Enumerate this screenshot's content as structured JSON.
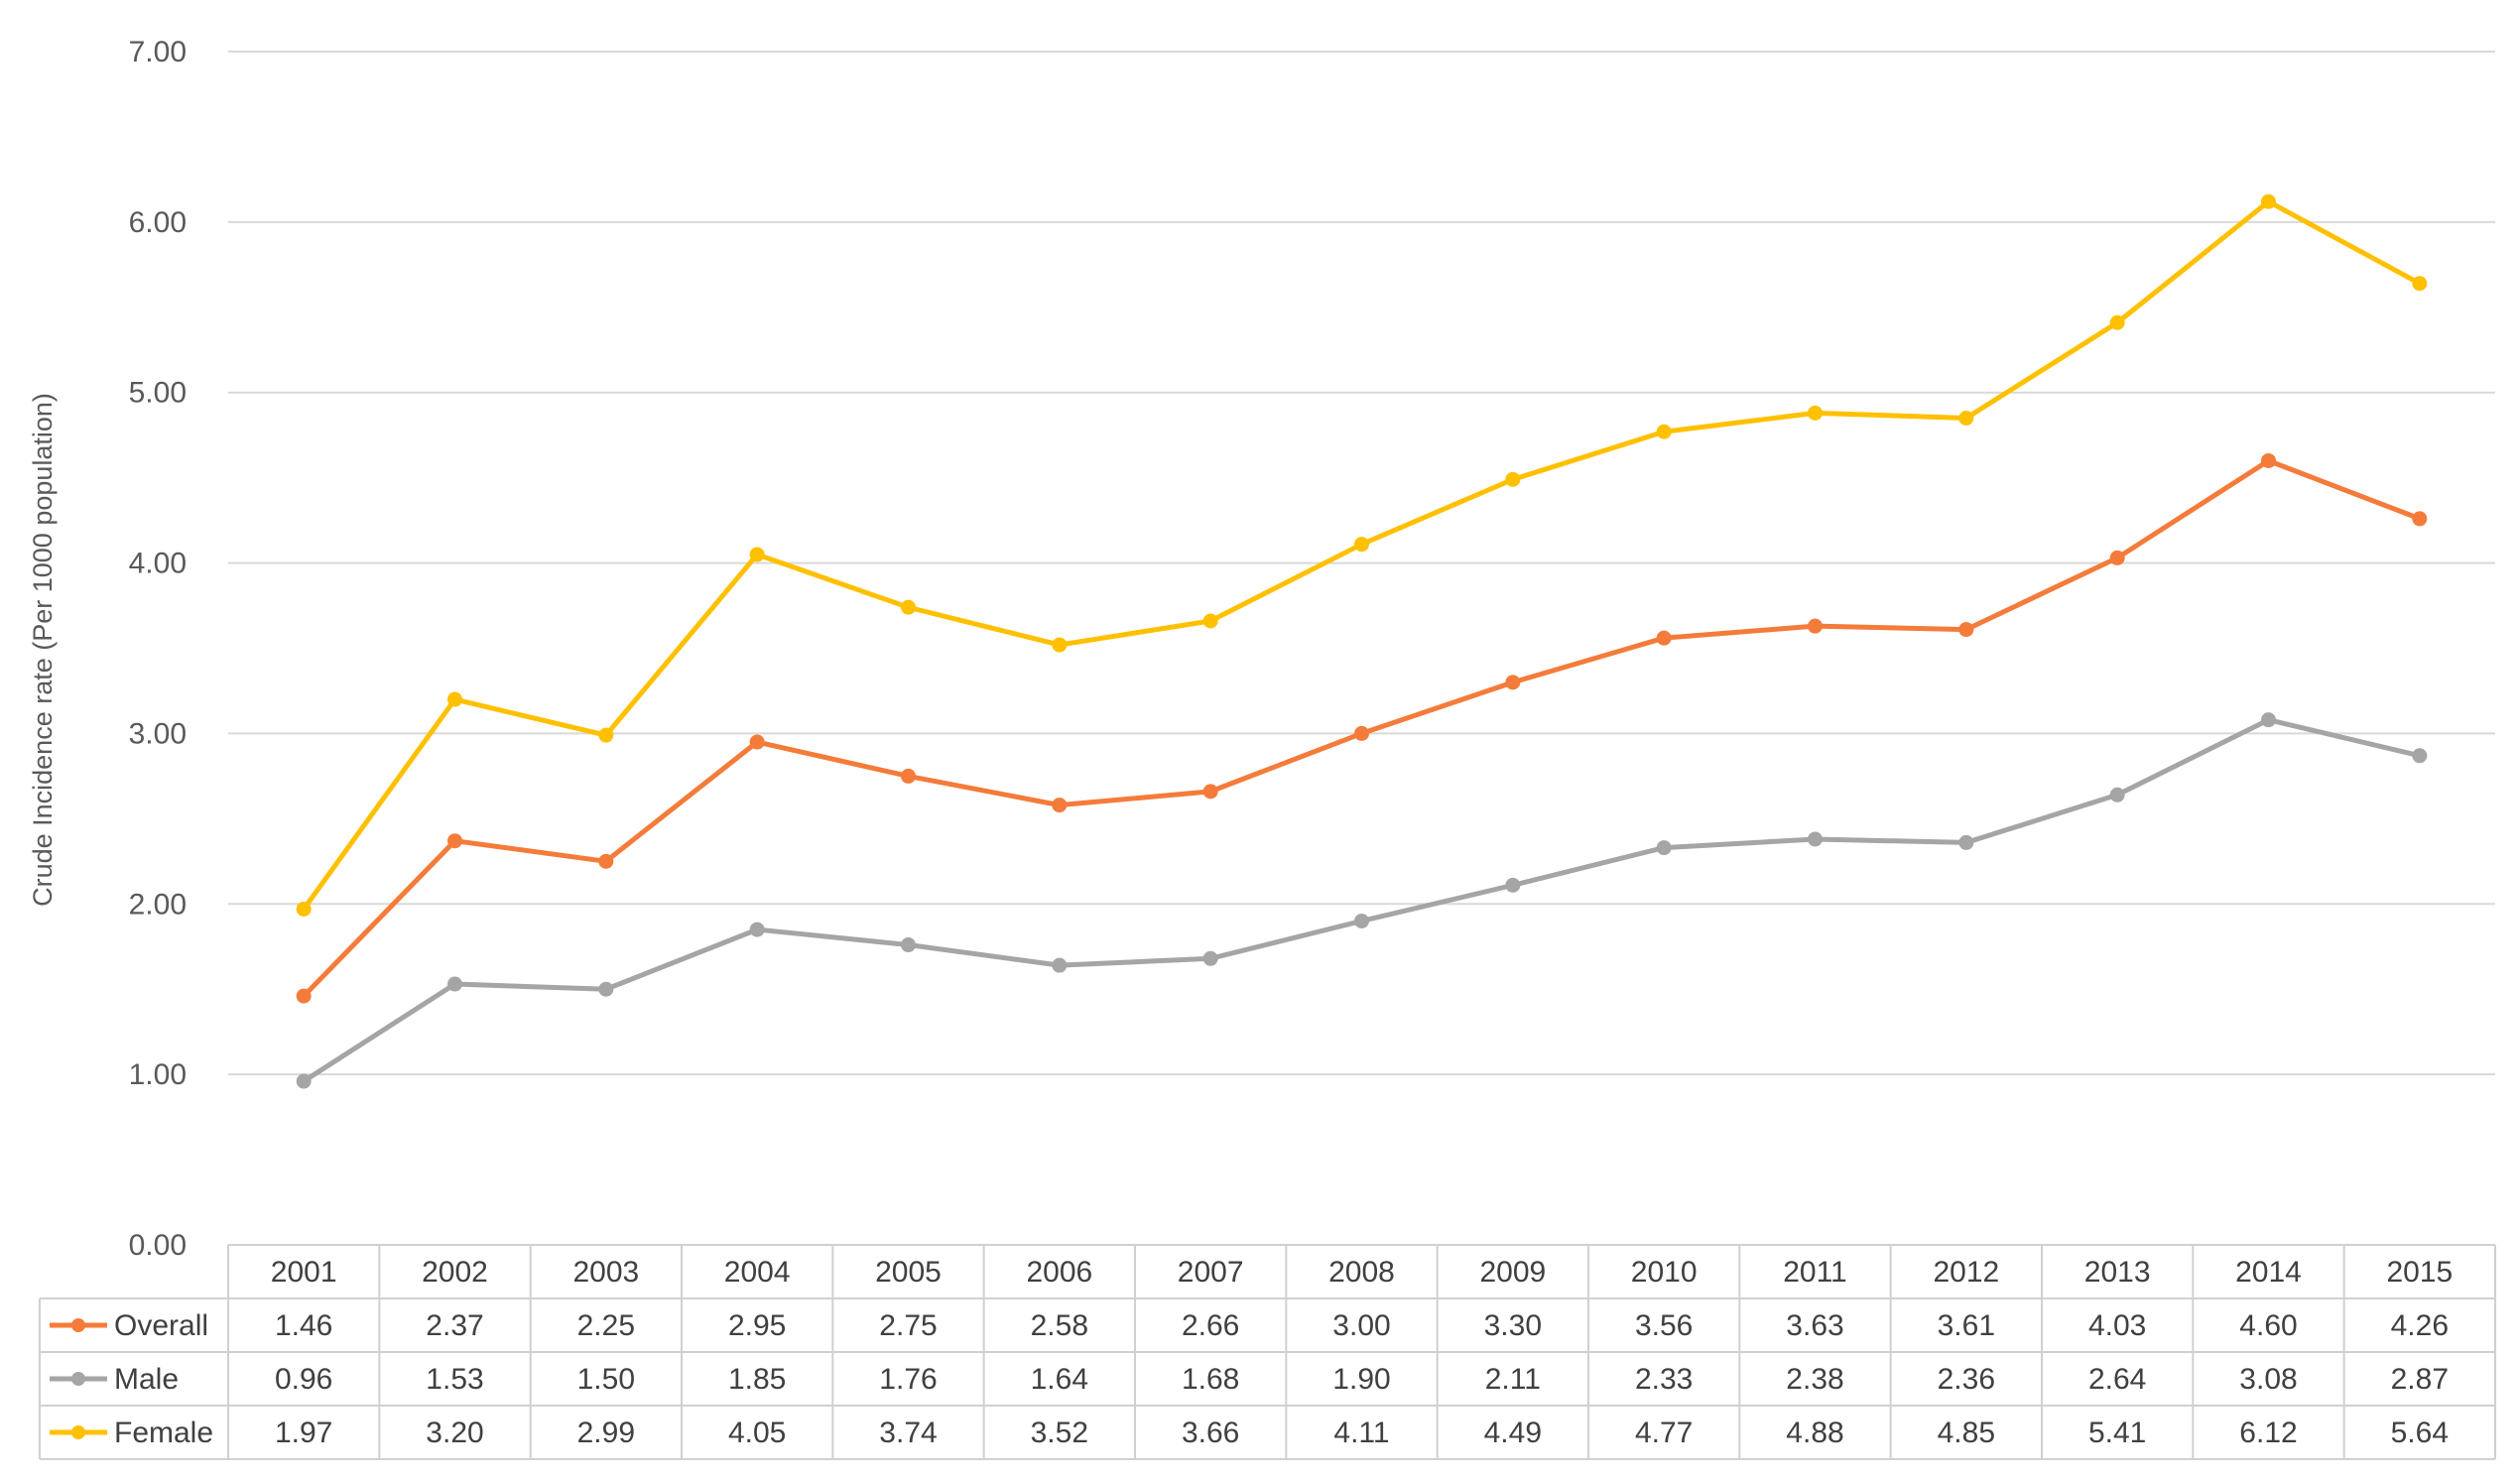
{
  "chart_data": {
    "type": "line",
    "title": "",
    "xlabel": "",
    "ylabel": "Crude Incidence rate (Per 1000 population)",
    "ylim": [
      0,
      7
    ],
    "yticks": [
      "0.00",
      "1.00",
      "2.00",
      "3.00",
      "4.00",
      "5.00",
      "6.00",
      "7.00"
    ],
    "grid": true,
    "legend": "data-table-left",
    "categories": [
      "2001",
      "2002",
      "2003",
      "2004",
      "2005",
      "2006",
      "2007",
      "2008",
      "2009",
      "2010",
      "2011",
      "2012",
      "2013",
      "2014",
      "2015"
    ],
    "series": [
      {
        "name": "Overall",
        "color": "#f47b3a",
        "values": [
          1.46,
          2.37,
          2.25,
          2.95,
          2.75,
          2.58,
          2.66,
          3.0,
          3.3,
          3.56,
          3.63,
          3.61,
          4.03,
          4.6,
          4.26
        ],
        "labels": [
          "1.46",
          "2.37",
          "2.25",
          "2.95",
          "2.75",
          "2.58",
          "2.66",
          "3.00",
          "3.30",
          "3.56",
          "3.63",
          "3.61",
          "4.03",
          "4.60",
          "4.26"
        ]
      },
      {
        "name": "Male",
        "color": "#a5a5a5",
        "values": [
          0.96,
          1.53,
          1.5,
          1.85,
          1.76,
          1.64,
          1.68,
          1.9,
          2.11,
          2.33,
          2.38,
          2.36,
          2.64,
          3.08,
          2.87
        ],
        "labels": [
          "0.96",
          "1.53",
          "1.50",
          "1.85",
          "1.76",
          "1.64",
          "1.68",
          "1.90",
          "2.11",
          "2.33",
          "2.38",
          "2.36",
          "2.64",
          "3.08",
          "2.87"
        ]
      },
      {
        "name": "Female",
        "color": "#ffc000",
        "values": [
          1.97,
          3.2,
          2.99,
          4.05,
          3.74,
          3.52,
          3.66,
          4.11,
          4.49,
          4.77,
          4.88,
          4.85,
          5.41,
          6.12,
          5.64
        ],
        "labels": [
          "1.97",
          "3.20",
          "2.99",
          "4.05",
          "3.74",
          "3.52",
          "3.66",
          "4.11",
          "4.49",
          "4.77",
          "4.88",
          "4.85",
          "5.41",
          "6.12",
          "5.64"
        ]
      }
    ]
  }
}
